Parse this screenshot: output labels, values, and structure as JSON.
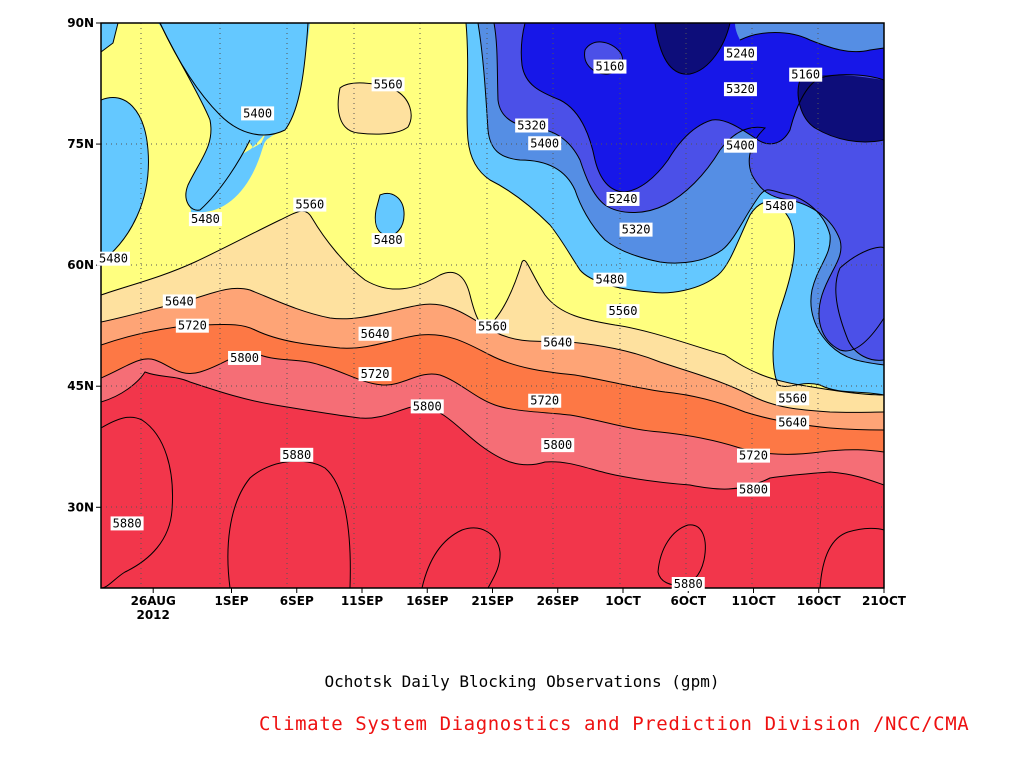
{
  "colors": {
    "c5880": "#f2364b",
    "c5800": "#f56e76",
    "c5720": "#fd7845",
    "c5640": "#fea476",
    "c5560": "#fee19f",
    "c5480": "#ffff7f",
    "c5400": "#64c8ff",
    "c5320": "#558ee4",
    "c5240": "#4b50e8",
    "c5160": "#1717e8",
    "c5080": "#0d0d7a"
  },
  "chart_data": {
    "type": "contour",
    "title": "Ochotsk Daily Blocking Observations (gpm)",
    "credit": "Climate System Diagnostics and Prediction Division /NCC/CMA",
    "x_ticks": [
      "26AUG",
      "1SEP",
      "6SEP",
      "11SEP",
      "16SEP",
      "21SEP",
      "26SEP",
      "1OCT",
      "6OCT",
      "11OCT",
      "16OCT",
      "21OCT"
    ],
    "x_year": "2012",
    "x_range": [
      "2012-08-22",
      "2012-10-21"
    ],
    "y_ticks": [
      "30N",
      "45N",
      "60N",
      "75N",
      "90N"
    ],
    "y_values": [
      30,
      45,
      60,
      75,
      90
    ],
    "y_range": [
      20,
      90
    ],
    "contour_levels": [
      5160,
      5240,
      5320,
      5400,
      5480,
      5560,
      5640,
      5720,
      5800,
      5880
    ],
    "contour_labels": [
      {
        "text": "5880",
        "date": "2012-08-24",
        "lat": 28
      },
      {
        "text": "5880",
        "date": "2012-09-06",
        "lat": 36.5
      },
      {
        "text": "5880",
        "date": "2012-10-06",
        "lat": 20.2
      },
      {
        "text": "5800",
        "date": "2012-09-02",
        "lat": 48.5
      },
      {
        "text": "5800",
        "date": "2012-09-16",
        "lat": 42.5
      },
      {
        "text": "5800",
        "date": "2012-09-26",
        "lat": 37.7
      },
      {
        "text": "5800",
        "date": "2012-10-11",
        "lat": 32.2
      },
      {
        "text": "5720",
        "date": "2012-08-29",
        "lat": 52.5
      },
      {
        "text": "5720",
        "date": "2012-09-12",
        "lat": 46.5
      },
      {
        "text": "5720",
        "date": "2012-09-25",
        "lat": 43.2
      },
      {
        "text": "5720",
        "date": "2012-10-11",
        "lat": 36.4
      },
      {
        "text": "5640",
        "date": "2012-08-28",
        "lat": 55.5
      },
      {
        "text": "5640",
        "date": "2012-09-12",
        "lat": 51.5
      },
      {
        "text": "5640",
        "date": "2012-09-26",
        "lat": 50.4
      },
      {
        "text": "5640",
        "date": "2012-10-14",
        "lat": 40.5
      },
      {
        "text": "5560",
        "date": "2012-09-07",
        "lat": 67.5
      },
      {
        "text": "5560",
        "date": "2012-09-13",
        "lat": 82.4
      },
      {
        "text": "5560",
        "date": "2012-09-21",
        "lat": 52.4
      },
      {
        "text": "5560",
        "date": "2012-10-01",
        "lat": 54.3
      },
      {
        "text": "5560",
        "date": "2012-10-14",
        "lat": 43.5
      },
      {
        "text": "5480",
        "date": "2012-08-22",
        "lat": 60.8
      },
      {
        "text": "5480",
        "date": "2012-08-30",
        "lat": 65.7
      },
      {
        "text": "5480",
        "date": "2012-09-13",
        "lat": 63.1
      },
      {
        "text": "5480",
        "date": "2012-09-30",
        "lat": 58.2
      },
      {
        "text": "5480",
        "date": "2012-10-13",
        "lat": 67.3
      },
      {
        "text": "5400",
        "date": "2012-09-03",
        "lat": 78.8
      },
      {
        "text": "5400",
        "date": "2012-09-25",
        "lat": 75.1
      },
      {
        "text": "5400",
        "date": "2012-10-10",
        "lat": 74.8
      },
      {
        "text": "5320",
        "date": "2012-09-24",
        "lat": 77.3
      },
      {
        "text": "5320",
        "date": "2012-10-02",
        "lat": 64.4
      },
      {
        "text": "5320",
        "date": "2012-10-10",
        "lat": 81.8
      },
      {
        "text": "5240",
        "date": "2012-10-01",
        "lat": 68.2
      },
      {
        "text": "5240",
        "date": "2012-10-10",
        "lat": 86.2
      },
      {
        "text": "5160",
        "date": "2012-09-30",
        "lat": 84.6
      },
      {
        "text": "5160",
        "date": "2012-10-15",
        "lat": 83.6
      }
    ]
  }
}
